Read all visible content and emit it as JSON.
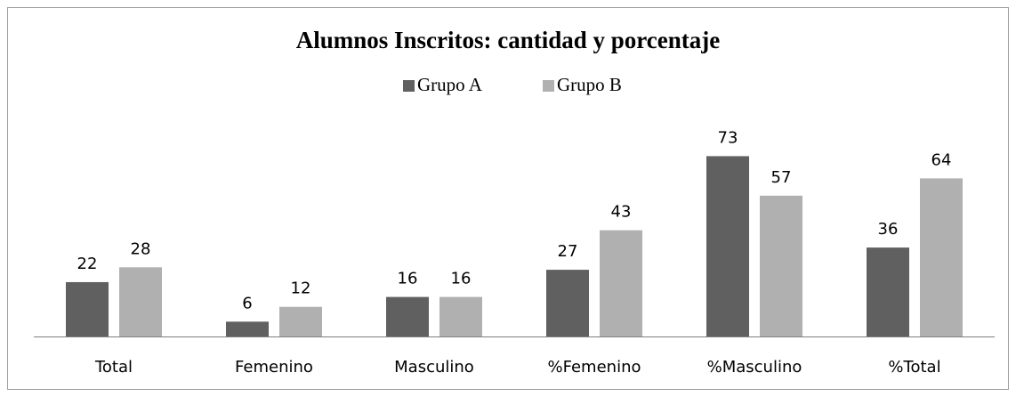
{
  "chart_data": {
    "type": "bar",
    "title": "Alumnos Inscritos: cantidad y porcentaje",
    "categories": [
      "Total",
      "Femenino",
      "Masculino",
      "%Femenino",
      "%Masculino",
      "%Total"
    ],
    "series": [
      {
        "name": "Grupo A",
        "color": "#606060",
        "values": [
          22,
          6,
          16,
          27,
          73,
          36
        ]
      },
      {
        "name": "Grupo B",
        "color": "#b0b0b0",
        "values": [
          28,
          12,
          16,
          43,
          57,
          64
        ]
      }
    ],
    "ylim": [
      0,
      80
    ],
    "legend": "top"
  }
}
